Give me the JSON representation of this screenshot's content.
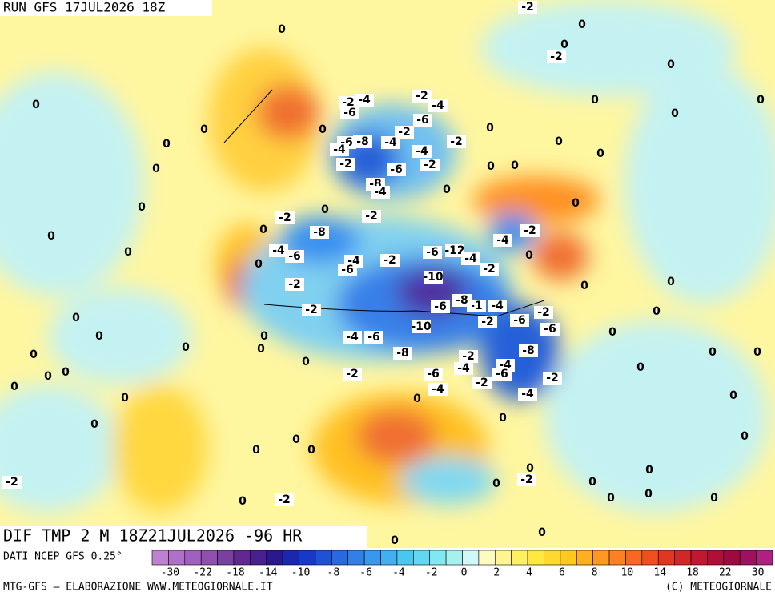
{
  "header": {
    "title": "RUN GFS 17JUL2026 18Z"
  },
  "map": {
    "caption": "DIF TMP 2 M 18Z21JUL2026 -96 HR",
    "contour_labels": [
      0,
      -2,
      0,
      0,
      -2,
      0,
      0,
      0,
      0,
      0,
      -2,
      -4,
      -2,
      -4,
      -6,
      -6,
      0,
      0,
      0,
      0,
      -2,
      -6,
      -8,
      -4,
      -4,
      -4,
      -2,
      0,
      0,
      0,
      -2,
      -6,
      -2,
      0,
      0,
      -8,
      -4,
      0,
      0,
      0,
      -2,
      -2,
      0,
      0,
      0,
      -8,
      -4,
      -2,
      0,
      -4,
      -6,
      -4,
      -2,
      -6,
      -12,
      -4,
      -2,
      0,
      0,
      -6,
      -10,
      0,
      0,
      -2,
      -1,
      -4,
      -6,
      -8,
      -2,
      0,
      0,
      -2,
      -6,
      -2,
      -10,
      -6,
      0,
      -4,
      -6,
      0,
      0,
      0,
      0,
      -8,
      -2,
      -8,
      0,
      0,
      0,
      0,
      -4,
      -4,
      0,
      0,
      0,
      -2,
      -6,
      -6,
      -2,
      -2,
      0,
      -4,
      -4,
      0,
      0,
      0,
      0,
      0,
      0,
      0,
      0,
      0,
      0,
      -2,
      -2,
      0,
      0,
      0,
      -2,
      0,
      0,
      0,
      0,
      0,
      0
    ]
  },
  "colorbar": {
    "source": "DATI NCEP GFS 0.25°",
    "colors": [
      "#c080d0",
      "#b070c8",
      "#a060c0",
      "#9050b0",
      "#7a40a0",
      "#602890",
      "#4a2090",
      "#2a1890",
      "#1a28b0",
      "#1838c8",
      "#2050d8",
      "#2868e0",
      "#3080e8",
      "#3898f0",
      "#40b0f0",
      "#48c8f0",
      "#60d8f0",
      "#80e8f0",
      "#a8f0f0",
      "#d0f8f8",
      "#fffbc0",
      "#fff590",
      "#fff060",
      "#ffe840",
      "#ffd830",
      "#ffc820",
      "#ffb020",
      "#ff9820",
      "#ff8020",
      "#f86820",
      "#f05020",
      "#e03820",
      "#d02828",
      "#c01830",
      "#b01038",
      "#a00840",
      "#a01060",
      "#b02080"
    ],
    "labels": [
      -30,
      -22,
      -18,
      -14,
      -10,
      -8,
      -6,
      -4,
      -2,
      0,
      2,
      4,
      6,
      8,
      10,
      14,
      18,
      22,
      30
    ]
  },
  "footer": {
    "credit": "MTG-GFS — ELABORAZIONE WWW.METEOGIORNALE.IT",
    "copyright": "(C) METEOGIORNALE"
  }
}
